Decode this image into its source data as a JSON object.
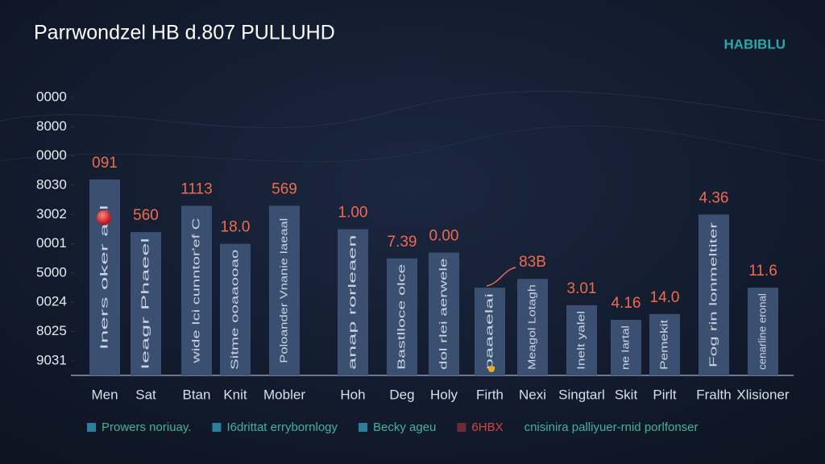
{
  "chart_data": {
    "type": "bar",
    "title": "Parrwondzel HB d.807 PULLUHD",
    "brand": "HABIBLU",
    "categories": [
      "Men",
      "Sat",
      "Btan",
      "Knit",
      "Mobler",
      "Hoh",
      "Deg",
      "Holy",
      "Firth",
      "Nexi",
      "Singtarl",
      "Skit",
      "Pirlt",
      "Fralth",
      "Xlisioner"
    ],
    "values": [
      6.7,
      4.9,
      5.8,
      4.5,
      5.8,
      5.0,
      4.0,
      4.2,
      3.0,
      3.3,
      2.4,
      1.9,
      2.1,
      5.5,
      3.0
    ],
    "bar_labels": [
      "091",
      "560",
      "1113",
      "18.0",
      "569",
      "1.00",
      "7.39",
      "0.00",
      null,
      "83B",
      "3.01",
      "4.16",
      "14.0",
      "4.36",
      "11.6"
    ],
    "bar_texts": [
      "Iners oker aal",
      "Ieagr Phaeel",
      "wide Ici cunntor'ef C",
      "Sitme ooaaooao",
      "Poloander Vnanie Iaeaal",
      "anap rorleaen",
      "Bastlloce olce",
      "dol rlei aerwele",
      "paaaelai",
      "Meagol Lotagh",
      "Inelt yalel",
      "ne Iartal",
      "Pemekit",
      "Fog rin lonmeltiter",
      "cenarline eronal"
    ],
    "color": "#3b5070",
    "ylim": [
      0,
      10
    ],
    "yticks": [
      {
        "value": 0.5,
        "label": "9031"
      },
      {
        "value": 1.5,
        "label": "8025"
      },
      {
        "value": 2.5,
        "label": "0024"
      },
      {
        "value": 3.5,
        "label": "5000"
      },
      {
        "value": 4.5,
        "label": "0001"
      },
      {
        "value": 5.5,
        "label": "3002"
      },
      {
        "value": 6.5,
        "label": "8030"
      },
      {
        "value": 7.5,
        "label": "0000"
      },
      {
        "value": 8.5,
        "label": "8000"
      },
      {
        "value": 9.5,
        "label": "0000"
      }
    ],
    "legend": [
      {
        "text": "Prowers noriuay.",
        "color": "#2a7fa0"
      },
      {
        "text": "I6drittat errybornlogy",
        "color": "#2a7fa0"
      },
      {
        "text": "Becky ageu",
        "color": "#2a7fa0"
      },
      {
        "text": "6HBX",
        "color": "#6b2a35"
      },
      {
        "text": "cnisinira palliyuer-rnid porlfonser",
        "color": null
      }
    ]
  }
}
